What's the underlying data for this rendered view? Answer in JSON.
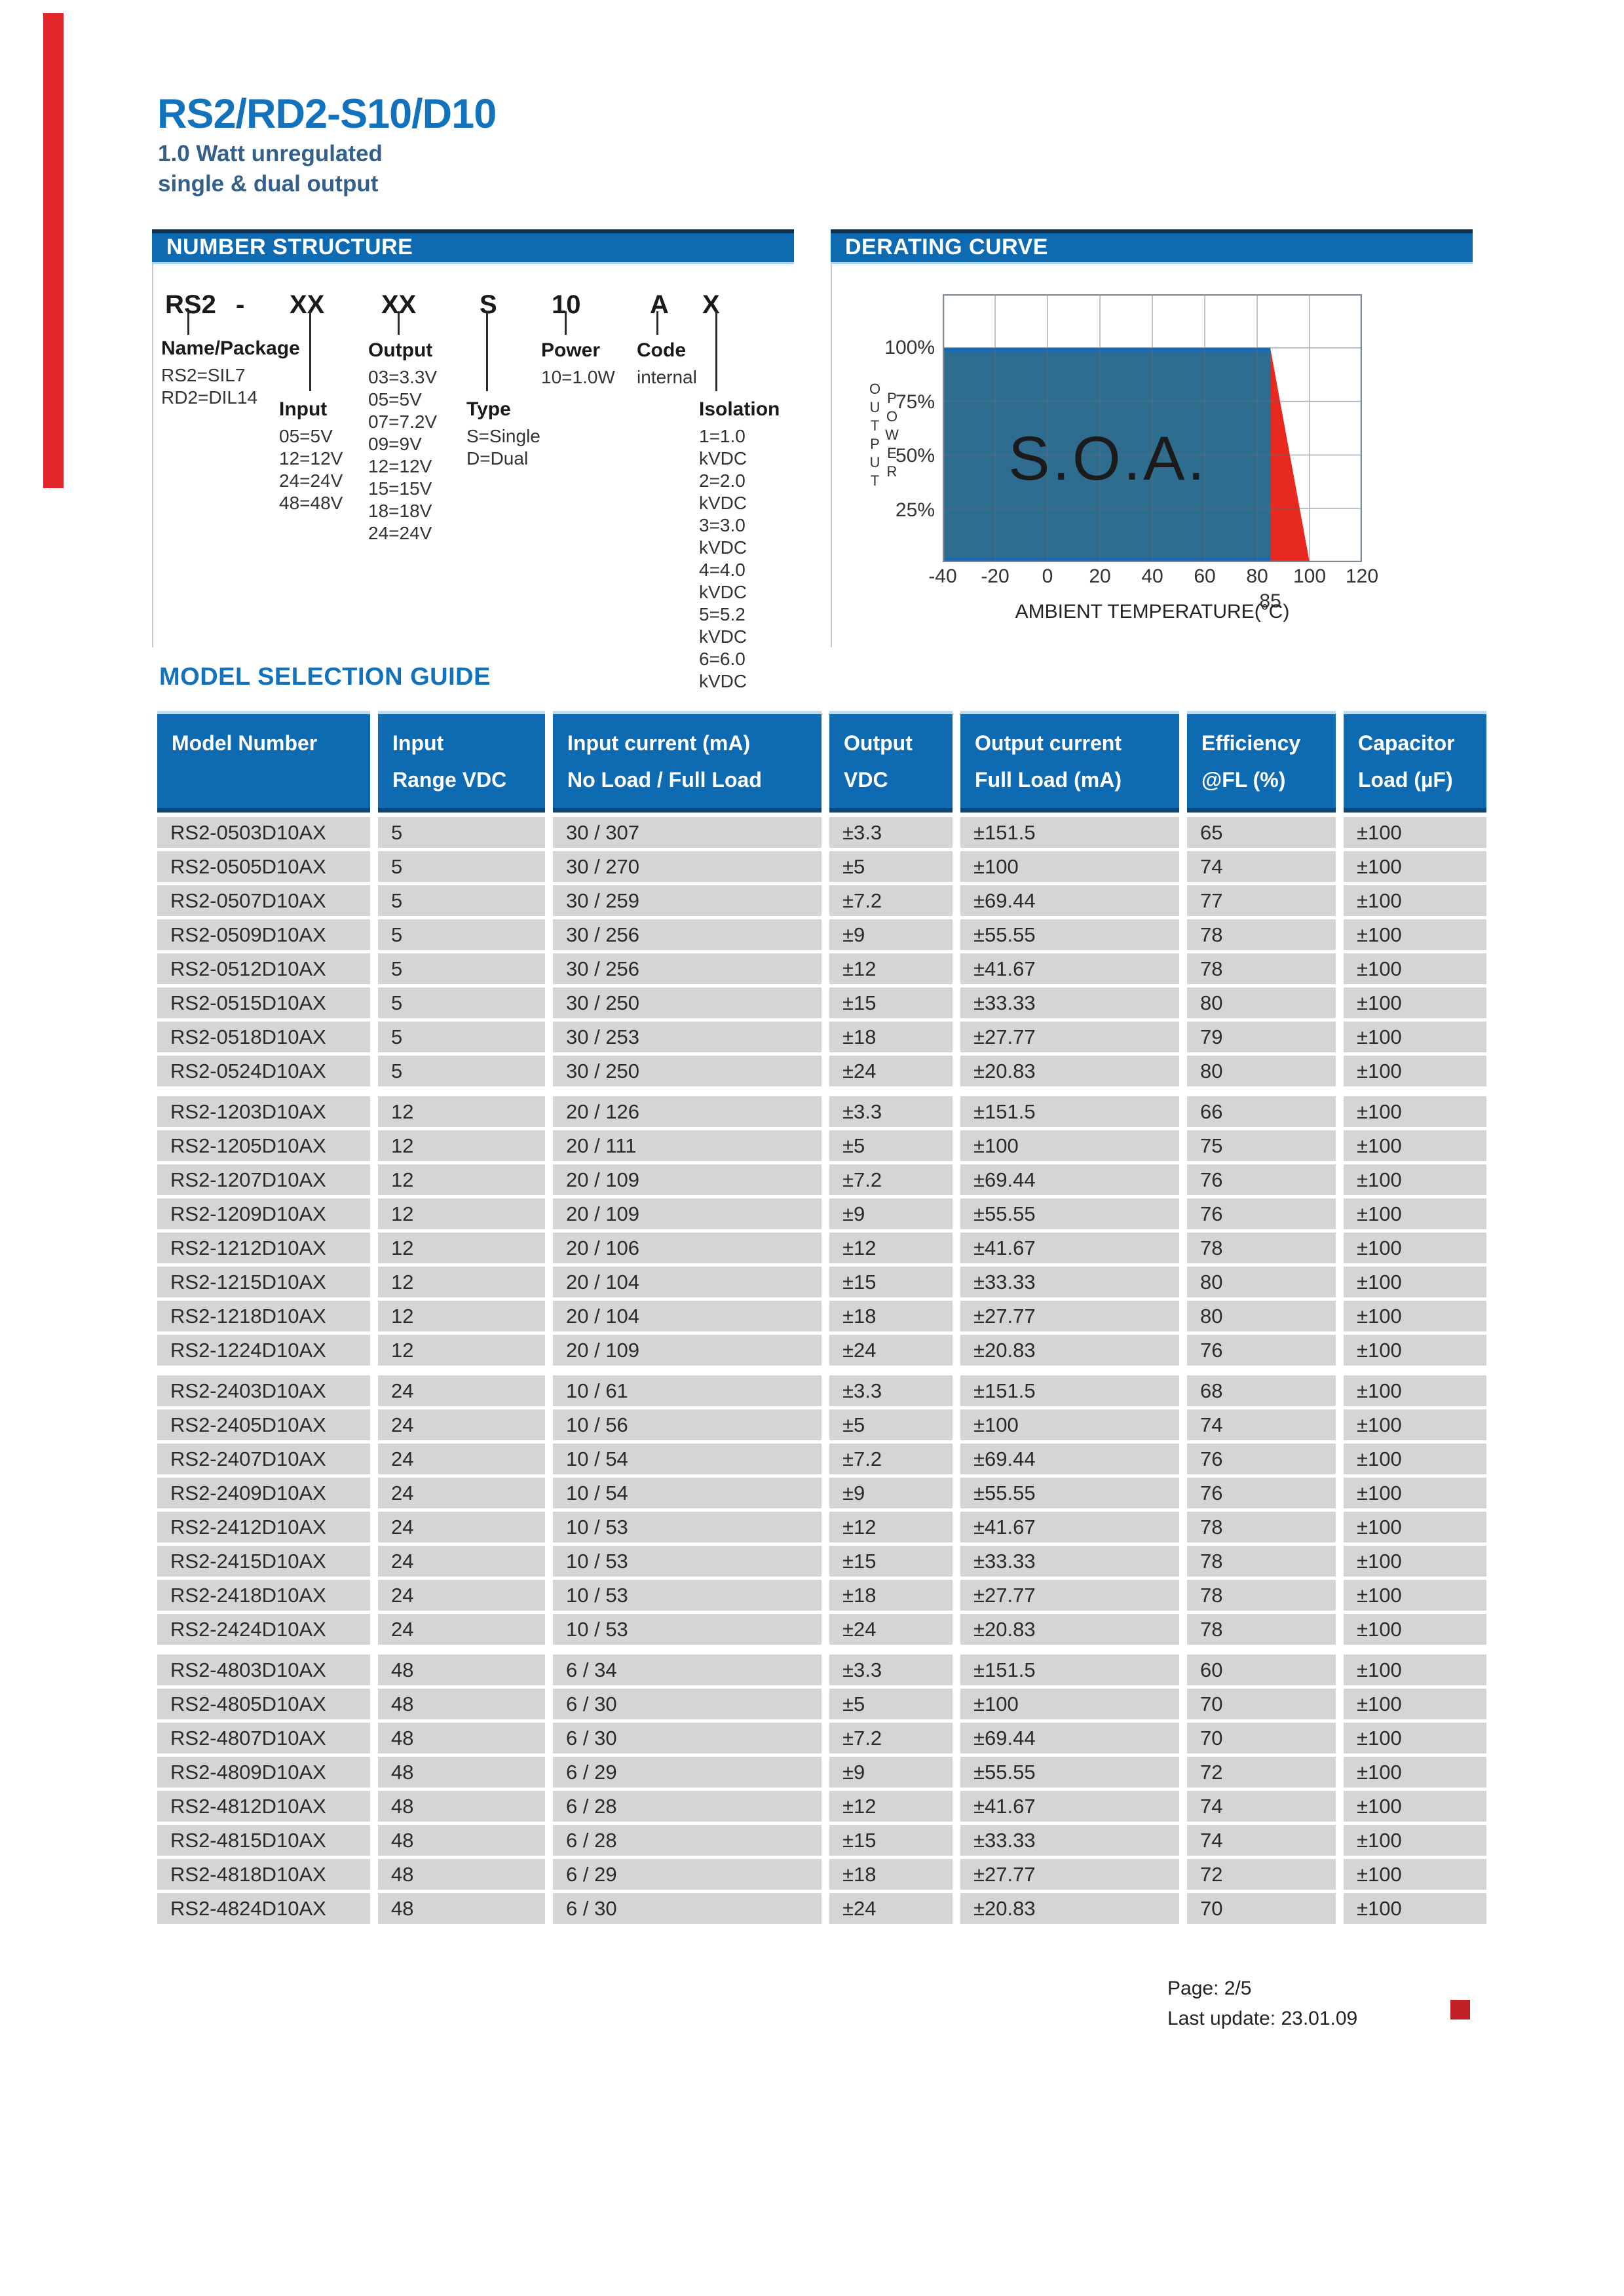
{
  "page": {
    "title": "RS2/RD2-S10/D10",
    "subtitle_line1": "1.0 Watt unregulated",
    "subtitle_line2": "single & dual output",
    "accent_color": "#E0262B",
    "brand_blue": "#0F6BB1",
    "title_blue": "#1273BC"
  },
  "number_structure": {
    "section_title": "NUMBER STRUCTURE",
    "code_tokens": [
      "RS2",
      "-",
      "XX",
      "XX",
      "S",
      "10",
      "A",
      "X"
    ],
    "groups": {
      "name_package": {
        "label": "Name/Package",
        "items": [
          "RS2=SIL7",
          "RD2=DIL14"
        ]
      },
      "input": {
        "label": "Input",
        "items": [
          "05=5V",
          "12=12V",
          "24=24V",
          "48=48V"
        ]
      },
      "output": {
        "label": "Output",
        "items": [
          "03=3.3V",
          "05=5V",
          "07=7.2V",
          "09=9V",
          "12=12V",
          "15=15V",
          "18=18V",
          "24=24V"
        ]
      },
      "type": {
        "label": "Type",
        "items": [
          "S=Single",
          "D=Dual"
        ]
      },
      "power": {
        "label": "Power",
        "items": [
          "10=1.0W"
        ]
      },
      "code": {
        "label": "Code",
        "items": [
          "internal"
        ]
      },
      "isolation": {
        "label": "Isolation",
        "items": [
          "1=1.0 kVDC",
          "2=2.0 kVDC",
          "3=3.0 kVDC",
          "4=4.0 kVDC",
          "5=5.2 kVDC",
          "6=6.0 kVDC"
        ]
      }
    }
  },
  "chart_data": {
    "type": "area",
    "title": "DERATING CURVE",
    "xlabel": "AMBIENT TEMPERATURE(°C)",
    "ylabel": "OUTPUT POWER",
    "x_ticks": [
      "-40",
      "-20",
      "0",
      "20",
      "40",
      "60",
      "80",
      "100",
      "120"
    ],
    "knee_tick": "85",
    "y_ticks": [
      "100%",
      "75%",
      "50%",
      "25%"
    ],
    "xlim": [
      -40,
      120
    ],
    "ylim_pct": [
      0,
      125
    ],
    "grid": true,
    "region_label": "S.O.A.",
    "soa_color": "#2E6D90",
    "derate_color": "#E8291F",
    "series": [
      {
        "name": "safe-operating-area",
        "points": [
          [
            -40,
            100
          ],
          [
            85,
            100
          ],
          [
            85,
            0
          ],
          [
            -40,
            0
          ]
        ]
      },
      {
        "name": "derating-boundary",
        "points": [
          [
            85,
            100
          ],
          [
            100,
            0
          ]
        ]
      }
    ]
  },
  "table": {
    "title": "MODEL SELECTION GUIDE",
    "headers": [
      [
        "Model Number",
        ""
      ],
      [
        "Input",
        "Range VDC"
      ],
      [
        "Input current (mA)",
        "No Load / Full Load"
      ],
      [
        "Output",
        "VDC"
      ],
      [
        "Output current",
        "Full Load (mA)"
      ],
      [
        "Efficiency",
        "@FL (%)"
      ],
      [
        "Capacitor",
        "Load (µF)"
      ]
    ],
    "rows": [
      [
        "RS2-0503D10AX",
        "5",
        "30 / 307",
        "±3.3",
        "±151.5",
        "65",
        "±100"
      ],
      [
        "RS2-0505D10AX",
        "5",
        "30 / 270",
        "±5",
        "±100",
        "74",
        "±100"
      ],
      [
        "RS2-0507D10AX",
        "5",
        "30 / 259",
        "±7.2",
        "±69.44",
        "77",
        "±100"
      ],
      [
        "RS2-0509D10AX",
        "5",
        "30 / 256",
        "±9",
        "±55.55",
        "78",
        "±100"
      ],
      [
        "RS2-0512D10AX",
        "5",
        "30 / 256",
        "±12",
        "±41.67",
        "78",
        "±100"
      ],
      [
        "RS2-0515D10AX",
        "5",
        "30 / 250",
        "±15",
        "±33.33",
        "80",
        "±100"
      ],
      [
        "RS2-0518D10AX",
        "5",
        "30 / 253",
        "±18",
        "±27.77",
        "79",
        "±100"
      ],
      [
        "RS2-0524D10AX",
        "5",
        "30 / 250",
        "±24",
        "±20.83",
        "80",
        "±100"
      ],
      [
        "RS2-1203D10AX",
        "12",
        "20 / 126",
        "±3.3",
        "±151.5",
        "66",
        "±100"
      ],
      [
        "RS2-1205D10AX",
        "12",
        "20 / 111",
        "±5",
        "±100",
        "75",
        "±100"
      ],
      [
        "RS2-1207D10AX",
        "12",
        "20 / 109",
        "±7.2",
        "±69.44",
        "76",
        "±100"
      ],
      [
        "RS2-1209D10AX",
        "12",
        "20 / 109",
        "±9",
        "±55.55",
        "76",
        "±100"
      ],
      [
        "RS2-1212D10AX",
        "12",
        "20 / 106",
        "±12",
        "±41.67",
        "78",
        "±100"
      ],
      [
        "RS2-1215D10AX",
        "12",
        "20 / 104",
        "±15",
        "±33.33",
        "80",
        "±100"
      ],
      [
        "RS2-1218D10AX",
        "12",
        "20 / 104",
        "±18",
        "±27.77",
        "80",
        "±100"
      ],
      [
        "RS2-1224D10AX",
        "12",
        "20 / 109",
        "±24",
        "±20.83",
        "76",
        "±100"
      ],
      [
        "RS2-2403D10AX",
        "24",
        "10 / 61",
        "±3.3",
        "±151.5",
        "68",
        "±100"
      ],
      [
        "RS2-2405D10AX",
        "24",
        "10 / 56",
        "±5",
        "±100",
        "74",
        "±100"
      ],
      [
        "RS2-2407D10AX",
        "24",
        "10 / 54",
        "±7.2",
        "±69.44",
        "76",
        "±100"
      ],
      [
        "RS2-2409D10AX",
        "24",
        "10 / 54",
        "±9",
        "±55.55",
        "76",
        "±100"
      ],
      [
        "RS2-2412D10AX",
        "24",
        "10 / 53",
        "±12",
        "±41.67",
        "78",
        "±100"
      ],
      [
        "RS2-2415D10AX",
        "24",
        "10 / 53",
        "±15",
        "±33.33",
        "78",
        "±100"
      ],
      [
        "RS2-2418D10AX",
        "24",
        "10 / 53",
        "±18",
        "±27.77",
        "78",
        "±100"
      ],
      [
        "RS2-2424D10AX",
        "24",
        "10 / 53",
        "±24",
        "±20.83",
        "78",
        "±100"
      ],
      [
        "RS2-4803D10AX",
        "48",
        "6 / 34",
        "±3.3",
        "±151.5",
        "60",
        "±100"
      ],
      [
        "RS2-4805D10AX",
        "48",
        "6 / 30",
        "±5",
        "±100",
        "70",
        "±100"
      ],
      [
        "RS2-4807D10AX",
        "48",
        "6 / 30",
        "±7.2",
        "±69.44",
        "70",
        "±100"
      ],
      [
        "RS2-4809D10AX",
        "48",
        "6 / 29",
        "±9",
        "±55.55",
        "72",
        "±100"
      ],
      [
        "RS2-4812D10AX",
        "48",
        "6 / 28",
        "±12",
        "±41.67",
        "74",
        "±100"
      ],
      [
        "RS2-4815D10AX",
        "48",
        "6 / 28",
        "±15",
        "±33.33",
        "74",
        "±100"
      ],
      [
        "RS2-4818D10AX",
        "48",
        "6 / 29",
        "±18",
        "±27.77",
        "72",
        "±100"
      ],
      [
        "RS2-4824D10AX",
        "48",
        "6 / 30",
        "±24",
        "±20.83",
        "70",
        "±100"
      ]
    ]
  },
  "footer": {
    "page_label": "Page: 2/5",
    "update_label": "Last update: 23.01.09"
  }
}
